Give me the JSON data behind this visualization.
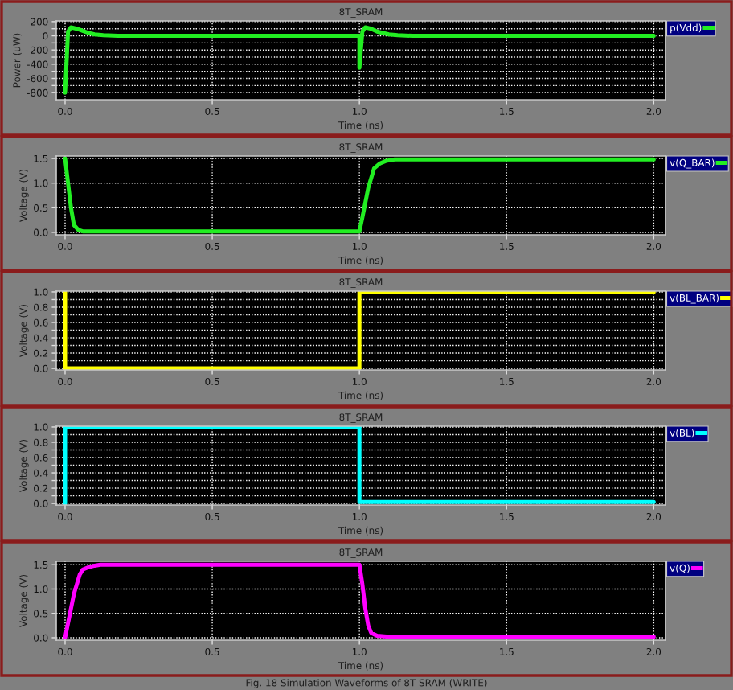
{
  "chart_data": [
    {
      "type": "line",
      "title": "8T_SRAM",
      "xlabel": "Time (ns)",
      "ylabel": "Power (uW)",
      "xlim": [
        -0.03,
        2.04
      ],
      "xticks": [
        {
          "value": 0,
          "label": "0.0"
        },
        {
          "value": 0.5,
          "label": "0.5"
        },
        {
          "value": 1,
          "label": "1.0"
        },
        {
          "value": 1.5,
          "label": "1.5"
        },
        {
          "value": 2,
          "label": "2.0"
        }
      ],
      "ylim": [
        -900,
        210
      ],
      "yticks": [
        200,
        {
          "value": 100,
          "label": null
        },
        0,
        {
          "value": -100,
          "label": null
        },
        -200,
        {
          "value": -300,
          "label": null
        },
        -400,
        {
          "value": -500,
          "label": null
        },
        -600,
        {
          "value": -700,
          "label": null
        },
        -800
      ],
      "grid": true,
      "legend": "top right",
      "series": [
        {
          "name": "p(Vdd)",
          "color": "#22ee22",
          "x": [
            0.0,
            0.01,
            0.02,
            0.04,
            0.06,
            0.08,
            0.1,
            0.13,
            0.18,
            1.0,
            1.0,
            1.01,
            1.02,
            1.04,
            1.06,
            1.08,
            1.1,
            1.13,
            1.18,
            2.0
          ],
          "values": [
            -800,
            60,
            120,
            100,
            70,
            40,
            20,
            10,
            0,
            0,
            -450,
            60,
            120,
            100,
            60,
            40,
            20,
            10,
            0,
            0
          ]
        }
      ]
    },
    {
      "type": "line",
      "title": "8T_SRAM",
      "xlabel": "Time (ns)",
      "ylabel": "Voltage (V)",
      "xlim": [
        -0.03,
        2.04
      ],
      "xticks": [
        {
          "value": 0,
          "label": "0.0"
        },
        {
          "value": 0.5,
          "label": "0.5"
        },
        {
          "value": 1,
          "label": "1.0"
        },
        {
          "value": 1.5,
          "label": "1.5"
        },
        {
          "value": 2,
          "label": "2.0"
        }
      ],
      "ylim": [
        -0.05,
        1.55
      ],
      "yticks": [
        {
          "value": 0,
          "label": "0.0"
        },
        0.5,
        {
          "value": 1,
          "label": "1.0"
        },
        1.5
      ],
      "grid": true,
      "legend": "top right",
      "series": [
        {
          "name": "v(Q_BAR)",
          "color": "#22ee22",
          "x": [
            0.0,
            0.01,
            0.02,
            0.03,
            0.045,
            0.06,
            1.0,
            1.01,
            1.02,
            1.03,
            1.04,
            1.05,
            1.07,
            1.09,
            1.12,
            2.0
          ],
          "values": [
            1.5,
            1.0,
            0.5,
            0.15,
            0.05,
            0.02,
            0.02,
            0.3,
            0.6,
            0.9,
            1.1,
            1.3,
            1.4,
            1.45,
            1.48,
            1.48
          ]
        }
      ]
    },
    {
      "type": "line",
      "title": "8T_SRAM",
      "xlabel": "Time (ns)",
      "ylabel": "Voltage (V)",
      "xlim": [
        -0.03,
        2.04
      ],
      "xticks": [
        {
          "value": 0,
          "label": "0.0"
        },
        {
          "value": 0.5,
          "label": "0.5"
        },
        {
          "value": 1,
          "label": "1.0"
        },
        {
          "value": 1.5,
          "label": "1.5"
        },
        {
          "value": 2,
          "label": "2.0"
        }
      ],
      "ylim": [
        -0.02,
        1.01
      ],
      "yticks": [
        {
          "value": 0,
          "label": "0.0"
        },
        {
          "value": 0.1,
          "label": null
        },
        0.2,
        {
          "value": 0.3,
          "label": null
        },
        0.4,
        {
          "value": 0.5,
          "label": null
        },
        0.6,
        {
          "value": 0.7,
          "label": null
        },
        0.8,
        {
          "value": 0.9,
          "label": null
        },
        {
          "value": 1,
          "label": "1.0"
        }
      ],
      "grid": true,
      "legend": "top right",
      "series": [
        {
          "name": "v(BL_BAR)",
          "color": "#ffff00",
          "x": [
            0.0,
            0.0,
            1.0,
            1.0,
            2.0
          ],
          "values": [
            1.0,
            0.0,
            0.0,
            1.0,
            1.0
          ]
        }
      ]
    },
    {
      "type": "line",
      "title": "8T_SRAM",
      "xlabel": "Time (ns)",
      "ylabel": "Voltage (V)",
      "xlim": [
        -0.03,
        2.04
      ],
      "xticks": [
        {
          "value": 0,
          "label": "0.0"
        },
        {
          "value": 0.5,
          "label": "0.5"
        },
        {
          "value": 1,
          "label": "1.0"
        },
        {
          "value": 1.5,
          "label": "1.5"
        },
        {
          "value": 2,
          "label": "2.0"
        }
      ],
      "ylim": [
        -0.02,
        1.01
      ],
      "yticks": [
        {
          "value": 0,
          "label": "0.0"
        },
        {
          "value": 0.1,
          "label": null
        },
        0.2,
        {
          "value": 0.3,
          "label": null
        },
        0.4,
        {
          "value": 0.5,
          "label": null
        },
        0.6,
        {
          "value": 0.7,
          "label": null
        },
        0.8,
        {
          "value": 0.9,
          "label": null
        },
        {
          "value": 1,
          "label": "1.0"
        }
      ],
      "grid": true,
      "legend": "top right",
      "series": [
        {
          "name": "v(BL)",
          "color": "#00ffff",
          "x": [
            0.0,
            0.0,
            1.0,
            1.0,
            2.0
          ],
          "values": [
            0.0,
            1.0,
            1.0,
            0.02,
            0.02
          ]
        }
      ]
    },
    {
      "type": "line",
      "title": "8T_SRAM",
      "xlabel": "Time (ns)",
      "ylabel": "Voltage (V)",
      "xlim": [
        -0.03,
        2.04
      ],
      "xticks": [
        {
          "value": 0,
          "label": "0.0"
        },
        {
          "value": 0.5,
          "label": "0.5"
        },
        {
          "value": 1,
          "label": "1.0"
        },
        {
          "value": 1.5,
          "label": "1.5"
        },
        {
          "value": 2,
          "label": "2.0"
        }
      ],
      "ylim": [
        -0.05,
        1.57
      ],
      "yticks": [
        {
          "value": 0,
          "label": "0.0"
        },
        0.5,
        {
          "value": 1,
          "label": "1.0"
        },
        1.5
      ],
      "grid": true,
      "legend": "top right",
      "series": [
        {
          "name": "v(Q)",
          "color": "#ff00ff",
          "x": [
            0.0,
            0.01,
            0.02,
            0.03,
            0.04,
            0.05,
            0.06,
            0.08,
            0.1,
            0.12,
            1.0,
            1.01,
            1.02,
            1.03,
            1.04,
            1.06,
            1.1,
            2.0
          ],
          "values": [
            0.0,
            0.3,
            0.6,
            0.9,
            1.1,
            1.3,
            1.4,
            1.45,
            1.48,
            1.5,
            1.5,
            1.1,
            0.6,
            0.25,
            0.1,
            0.04,
            0.02,
            0.02
          ]
        }
      ],
      "annotations": [
        "Fig. 18 Simulation Waveforms of 8T SRAM (WRITE)"
      ]
    }
  ]
}
